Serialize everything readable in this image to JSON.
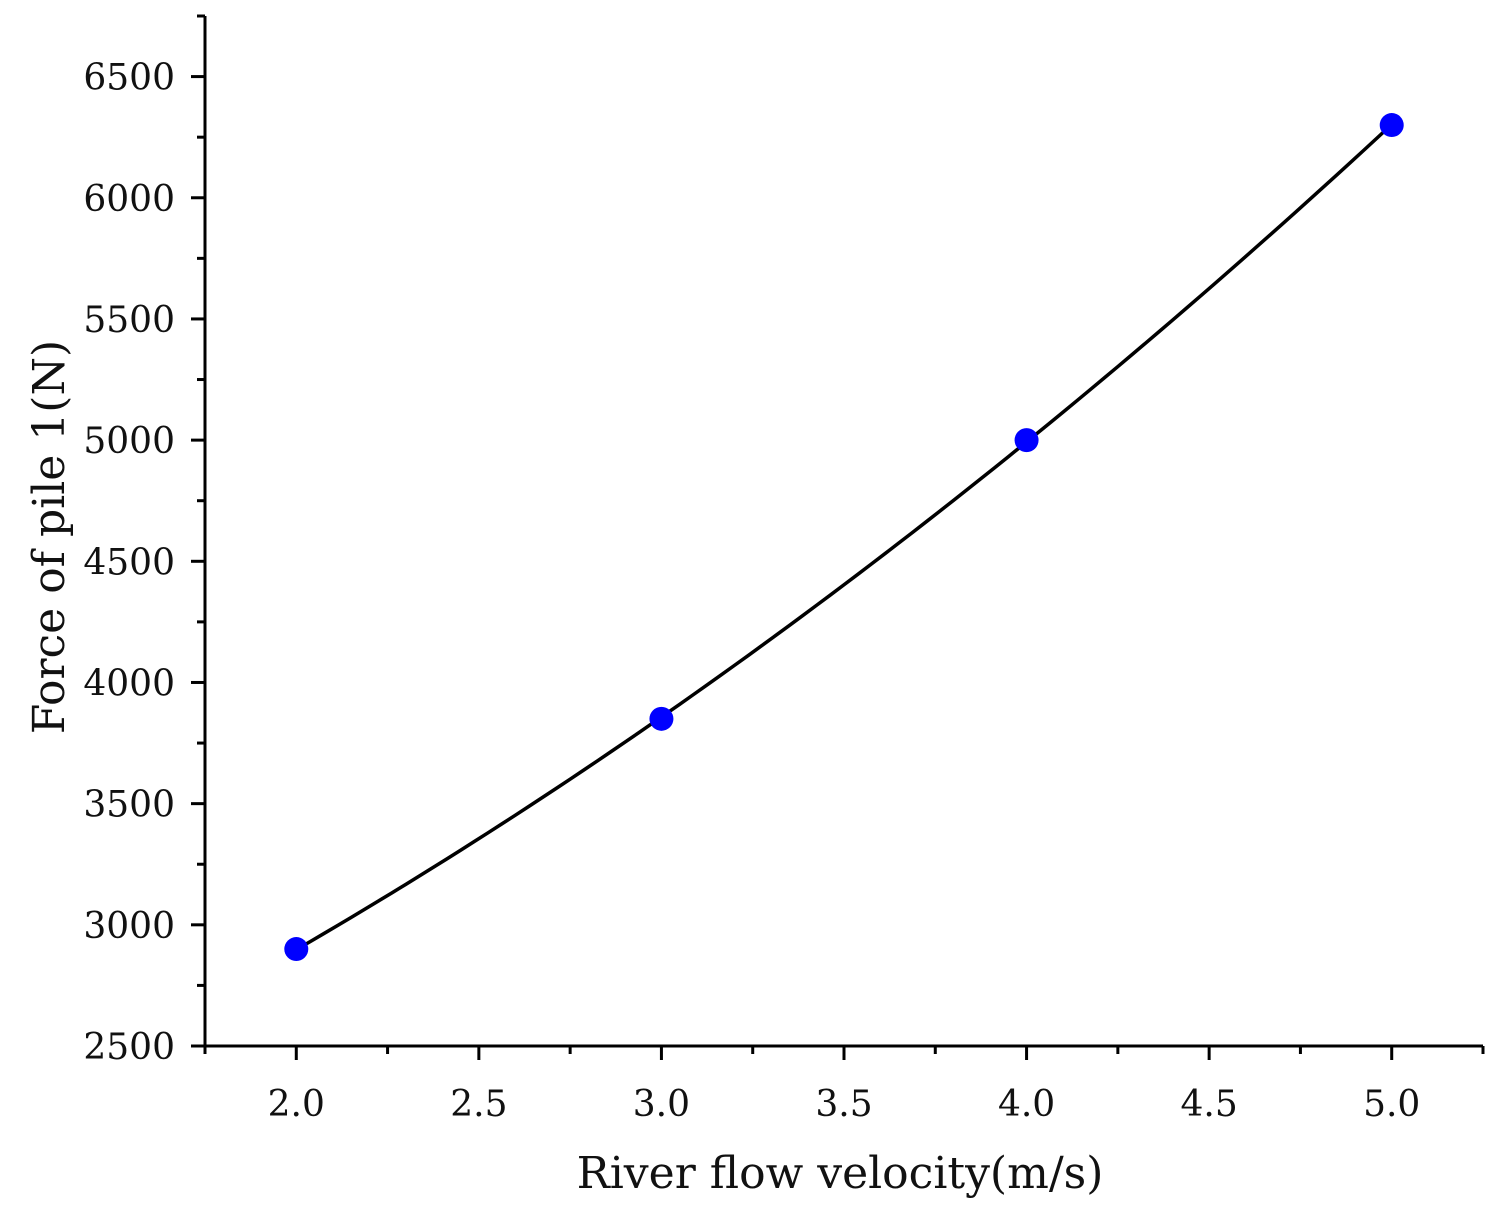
{
  "chart_data": {
    "type": "scatter",
    "title": "",
    "xlabel": "River flow velocity(m/s)",
    "ylabel": "Force of pile 1(N)",
    "xlim": [
      1.75,
      5.25
    ],
    "ylim": [
      2500,
      6750
    ],
    "x_ticks": [
      "2.0",
      "2.5",
      "3.0",
      "3.5",
      "4.0",
      "4.5",
      "5.0"
    ],
    "y_ticks": [
      "2500",
      "3000",
      "3500",
      "4000",
      "4500",
      "5000",
      "5500",
      "6000",
      "6500"
    ],
    "grid": false,
    "legend": "none",
    "series": [
      {
        "x": [
          2.0,
          3.0,
          4.0,
          5.0
        ],
        "y": [
          2900,
          3850,
          5000,
          6300
        ],
        "marker_color": "#0000ff",
        "fit_line": "smooth",
        "line_color": "#000000"
      }
    ]
  }
}
